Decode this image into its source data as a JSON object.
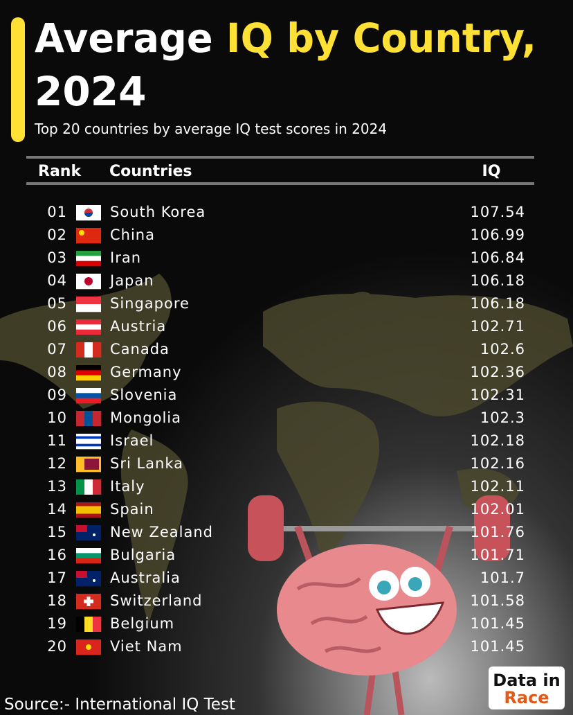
{
  "header": {
    "title_part1": "Average ",
    "title_highlight": "IQ by Country,",
    "title_line2": "2024",
    "subtitle": "Top 20 countries by average IQ test scores in 2024"
  },
  "table": {
    "columns": [
      "Rank",
      "Countries",
      "IQ"
    ],
    "rows": [
      [
        "01",
        "South Korea",
        "107.54"
      ],
      [
        "02",
        "China",
        "106.99"
      ],
      [
        "03",
        "Iran",
        "106.84"
      ],
      [
        "04",
        "Japan",
        "106.18"
      ],
      [
        "05",
        "Singapore",
        "106.18"
      ],
      [
        "06",
        "Austria",
        "102.71"
      ],
      [
        "07",
        "Canada",
        "102.6"
      ],
      [
        "08",
        "Germany",
        "102.36"
      ],
      [
        "09",
        "Slovenia",
        "102.31"
      ],
      [
        "10",
        "Mongolia",
        "102.3"
      ],
      [
        "11",
        "Israel",
        "102.18"
      ],
      [
        "12",
        "Sri Lanka",
        "102.16"
      ],
      [
        "13",
        "Italy",
        "102.11"
      ],
      [
        "14",
        "Spain",
        "102.01"
      ],
      [
        "15",
        "New Zealand",
        "101.76"
      ],
      [
        "16",
        "Bulgaria",
        "101.71"
      ],
      [
        "17",
        "Australia",
        "101.7"
      ],
      [
        "18",
        "Switzerland",
        "101.58"
      ],
      [
        "19",
        "Belgium",
        "101.45"
      ],
      [
        "20",
        "Viet Nam",
        "101.45"
      ]
    ]
  },
  "footer": {
    "source": "Source:-  International IQ Test",
    "logo_line1": "Data in",
    "logo_line2": "Race"
  }
}
